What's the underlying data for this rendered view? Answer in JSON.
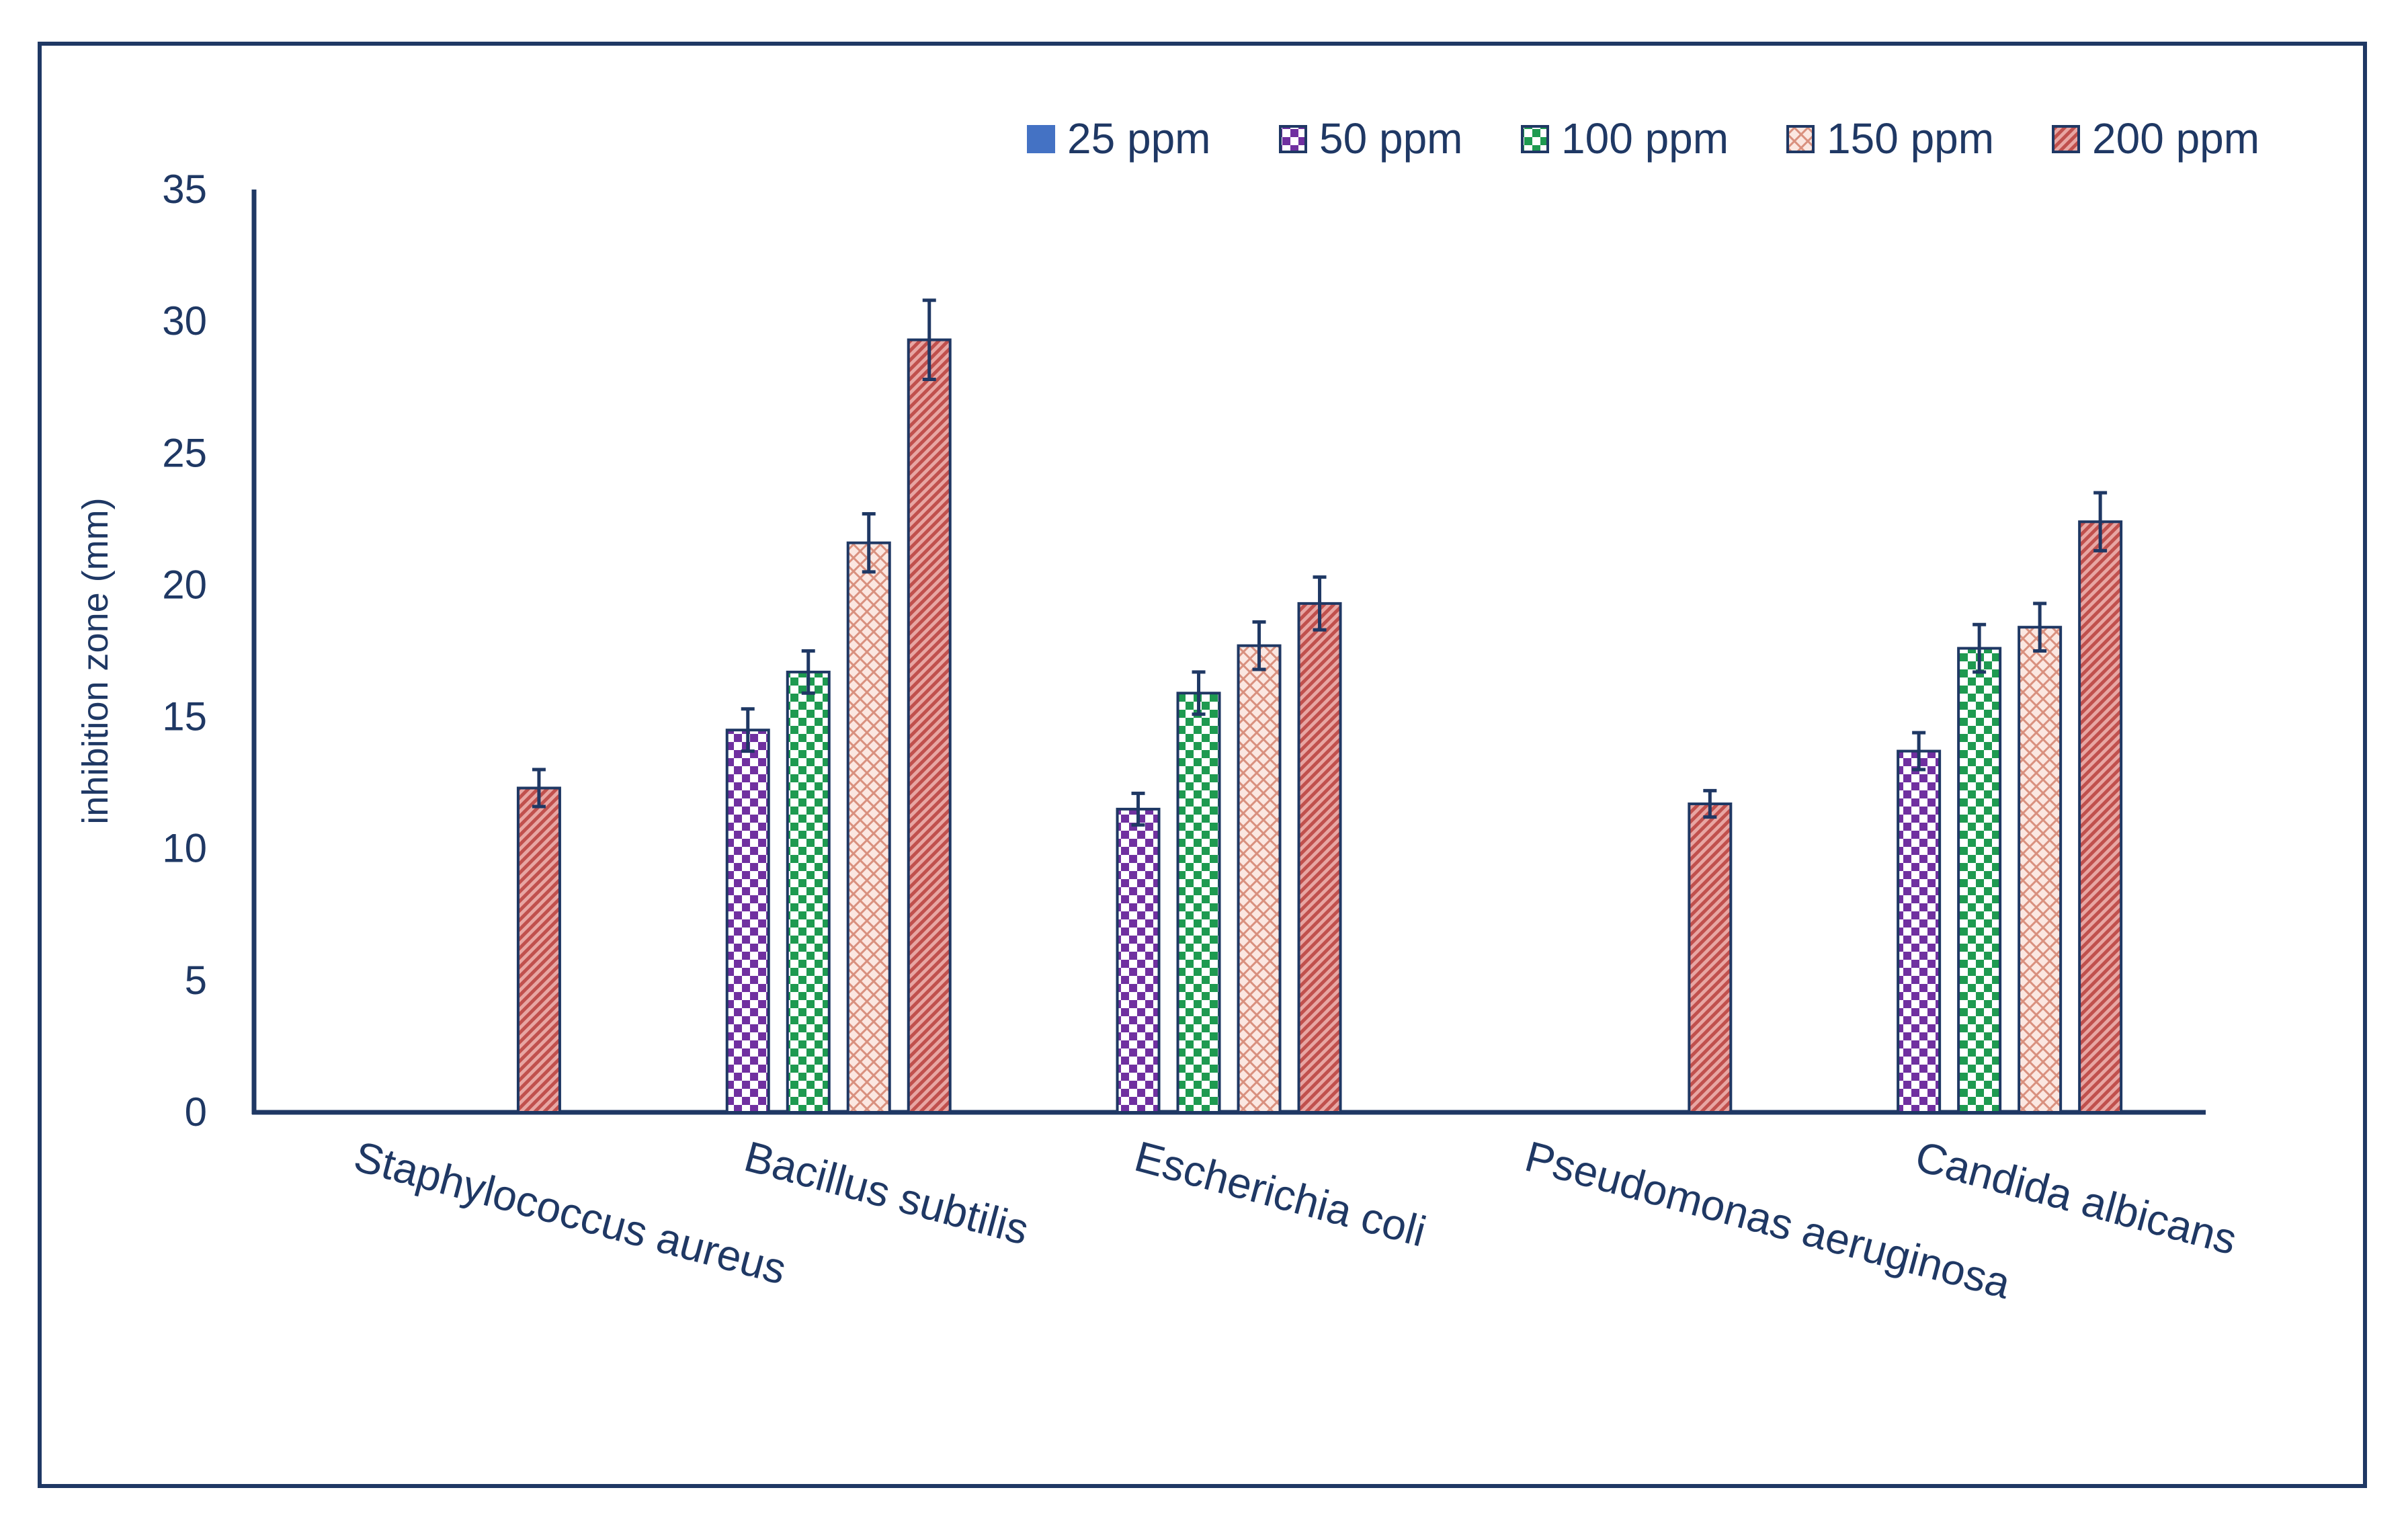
{
  "chart_data": {
    "type": "bar",
    "title": "",
    "xlabel": "",
    "ylabel": "inhibition zone (mm)",
    "ylim": [
      0,
      35
    ],
    "yticks": [
      0,
      5,
      10,
      15,
      20,
      25,
      30,
      35
    ],
    "grid": false,
    "legend_position": "top-right",
    "categories": [
      "Staphylococcus aureus",
      "Bacillus subtilis",
      "Escherichia coli",
      "Pseudomonas aeruginosa",
      "Candida albicans"
    ],
    "series": [
      {
        "name": "25  ppm",
        "pattern": "solid",
        "color": "#4472c4",
        "values": [
          0,
          0,
          0,
          0,
          0
        ],
        "errors": [
          0,
          0,
          0,
          0,
          0
        ]
      },
      {
        "name": "50 ppm",
        "pattern": "checker",
        "color": "#7030a0",
        "values": [
          0,
          14.5,
          11.5,
          0,
          13.7
        ],
        "errors": [
          0,
          0.8,
          0.6,
          0,
          0.7
        ]
      },
      {
        "name": "100 ppm",
        "pattern": "checker",
        "color": "#1e9a50",
        "values": [
          0,
          16.7,
          15.9,
          0,
          17.6
        ],
        "errors": [
          0,
          0.8,
          0.8,
          0,
          0.9
        ]
      },
      {
        "name": "150 ppm",
        "pattern": "crosshatch",
        "color": "#e8a090",
        "values": [
          0,
          21.6,
          17.7,
          0,
          18.4
        ],
        "errors": [
          0,
          1.1,
          0.9,
          0,
          0.9
        ]
      },
      {
        "name": "200 ppm",
        "pattern": "diagonal",
        "color": "#c0504d",
        "values": [
          12.3,
          29.3,
          19.3,
          11.7,
          22.4
        ],
        "errors": [
          0.7,
          1.5,
          1.0,
          0.5,
          1.1
        ]
      }
    ]
  }
}
